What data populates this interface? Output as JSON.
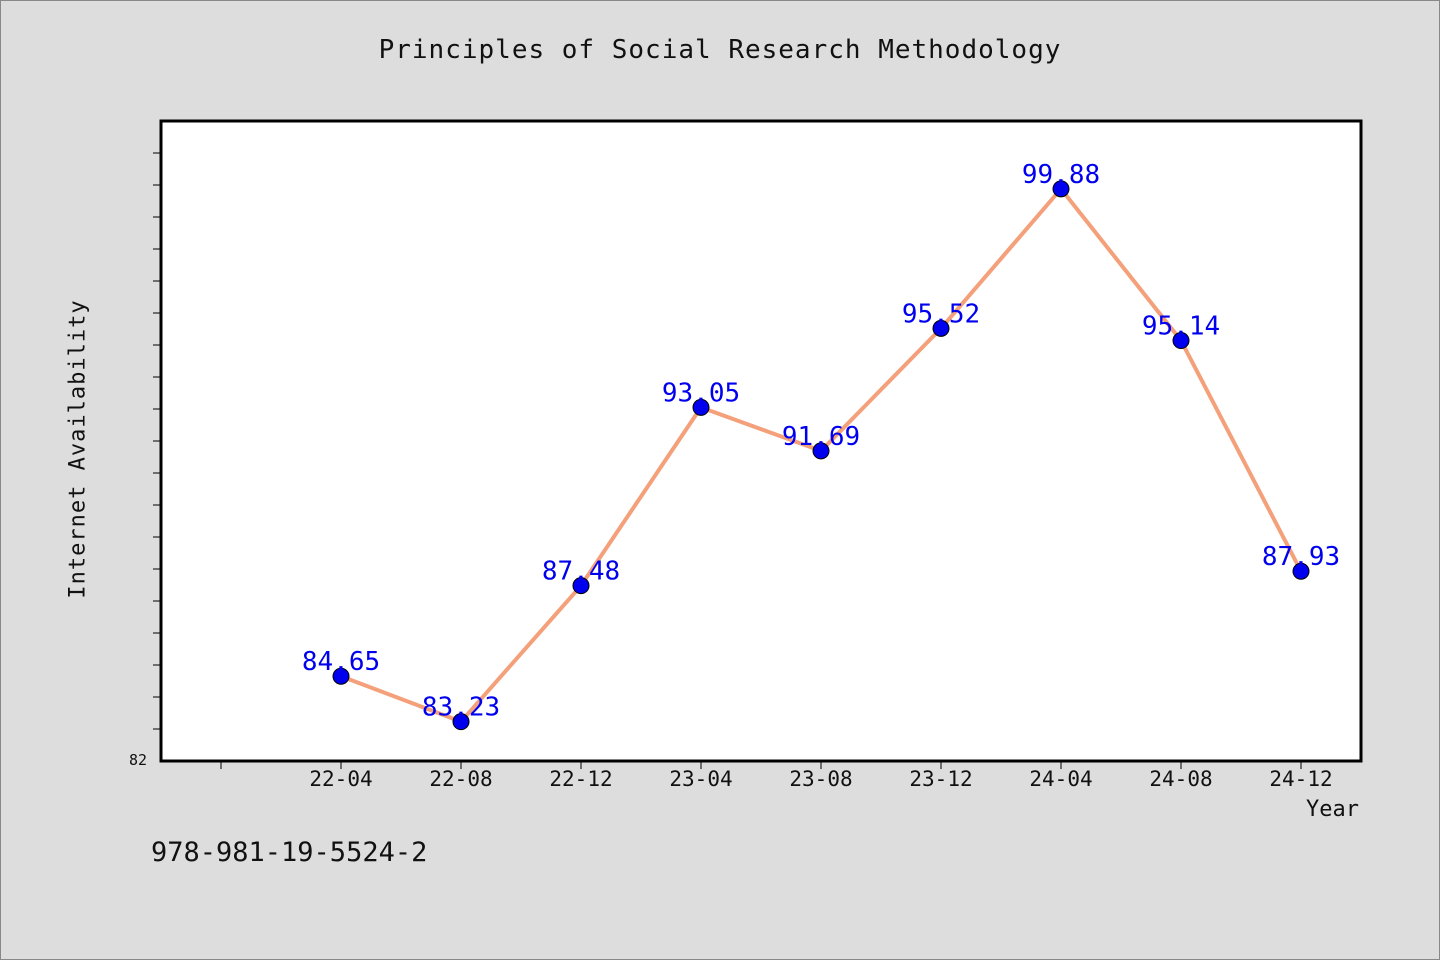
{
  "chart_data": {
    "type": "line",
    "title": "Principles of Social Research Methodology",
    "xlabel": "Year",
    "ylabel": "Internet Availability",
    "categories": [
      "22-04",
      "22-08",
      "22-12",
      "23-04",
      "23-08",
      "23-12",
      "24-04",
      "24-08",
      "24-12"
    ],
    "series": [
      {
        "values": [
          84.65,
          83.23,
          87.48,
          93.05,
          91.69,
          95.52,
          99.88,
          95.14,
          87.93
        ],
        "labels": [
          "84.65",
          "83.23",
          "87.48",
          "93.05",
          "91.69",
          "95.52",
          "99.88",
          "95.14",
          "87.93"
        ]
      }
    ],
    "ylim": [
      82,
      102
    ],
    "y_min_label": "82",
    "grid": false,
    "line_color": "#f4a07a",
    "marker_color": "#0000ee",
    "label_color": "#0000ee"
  },
  "footer": {
    "isbn": "978-981-19-5524-2"
  }
}
